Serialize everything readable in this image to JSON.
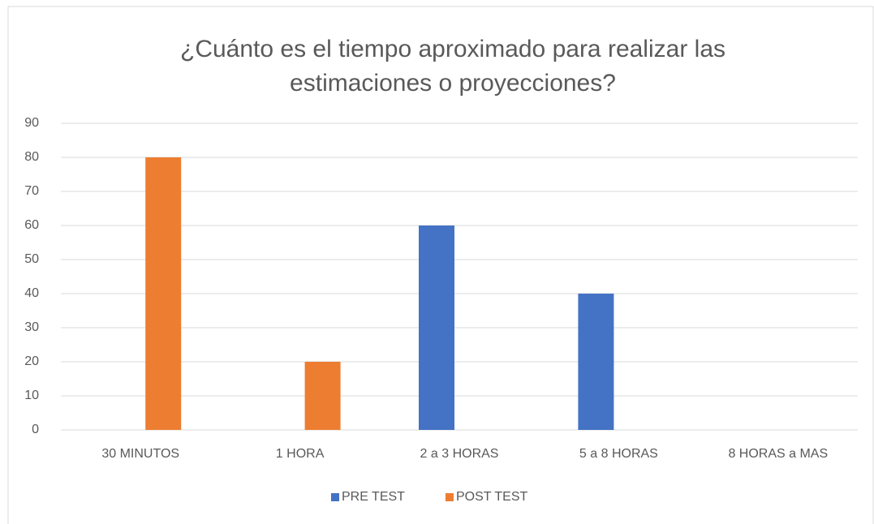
{
  "chart_data": {
    "type": "bar",
    "title": "¿Cuánto es el tiempo aproximado para realizar las estimaciones o proyecciones?",
    "categories": [
      "30 MINUTOS",
      "1 HORA",
      "2 a 3 HORAS",
      "5 a 8 HORAS",
      "8 HORAS a MAS"
    ],
    "series": [
      {
        "name": "PRE TEST",
        "color": "#4472c4",
        "values": [
          0,
          0,
          60,
          40,
          0
        ]
      },
      {
        "name": "POST TEST",
        "color": "#ed7d31",
        "values": [
          80,
          20,
          0,
          0,
          0
        ]
      }
    ],
    "ylim": [
      0,
      90
    ],
    "yticks": [
      0,
      10,
      20,
      30,
      40,
      50,
      60,
      70,
      80,
      90
    ],
    "grid": true,
    "legend": "bottom"
  }
}
